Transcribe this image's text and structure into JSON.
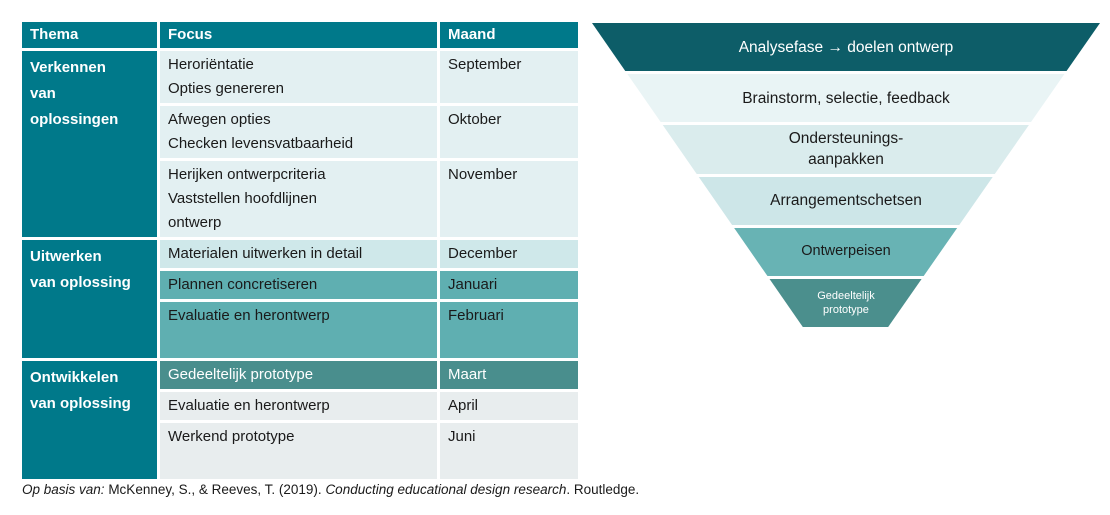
{
  "palette": {
    "teal": "#00798a",
    "row-light": "#e3f0f2",
    "row-medium-light": "#cfe8ea",
    "row-medium": "#5fafb1",
    "row-dark": "#498e8d",
    "row-gray": "#e8edee",
    "text-dark": "#1a1a1a"
  },
  "table": {
    "headers": [
      "Thema",
      "Focus",
      "Maand"
    ],
    "sections": [
      {
        "thema": "Verkennen\nvan\noplossingen",
        "rows": [
          {
            "focus": [
              "Heroriëntatie",
              "Opties genereren"
            ],
            "maand": "September",
            "style": "light"
          },
          {
            "focus": [
              "Afwegen opties",
              "Checken levensvatbaarheid"
            ],
            "maand": "Oktober",
            "style": "light"
          },
          {
            "focus": [
              "Herijken ontwerpcriteria",
              "Vaststellen hoofdlijnen\nontwerp"
            ],
            "maand": "November",
            "style": "light"
          }
        ]
      },
      {
        "thema": "Uitwerken\nvan oplossing",
        "rows": [
          {
            "focus": [
              "Materialen uitwerken in detail"
            ],
            "maand": "December",
            "style": "medium-light"
          },
          {
            "focus": [
              "Plannen concretiseren"
            ],
            "maand": "Januari",
            "style": "medium"
          },
          {
            "focus": [
              "Evaluatie en herontwerp"
            ],
            "maand": "Februari",
            "style": "medium",
            "tall": true
          }
        ]
      },
      {
        "thema": "Ontwikkelen\nvan oplossing",
        "rows": [
          {
            "focus": [
              "Gedeeltelijk prototype"
            ],
            "maand": "Maart",
            "style": "dark"
          },
          {
            "focus": [
              "Evaluatie en herontwerp"
            ],
            "maand": "April",
            "style": "gray"
          },
          {
            "focus": [
              "Werkend prototype"
            ],
            "maand": "Juni",
            "style": "gray",
            "tall": true
          }
        ]
      }
    ]
  },
  "funnel": {
    "levels": [
      {
        "label": "Analysefase → doelen ontwerp",
        "bg": "#0d5d68",
        "text_color": "#ffffff"
      },
      {
        "label": "Brainstorm, selectie, feedback",
        "bg": "#e9f4f5",
        "text_color": "#1a1a1a"
      },
      {
        "label": "Ondersteunings-\naanpakken",
        "bg": "#daeced",
        "text_color": "#1a1a1a"
      },
      {
        "label": "Arrangementschetsen",
        "bg": "#cde6e8",
        "text_color": "#1a1a1a"
      },
      {
        "label": "Ontwerpeisen",
        "bg": "#68b3b4",
        "text_color": "#1a1a1a"
      },
      {
        "label": "Gedeeltelijk\nprototype",
        "bg": "#4b8f8d",
        "text_color": "#ffffff"
      }
    ]
  },
  "citation": {
    "prefix": "Op basis van:",
    "authors": "McKenney, S., & Reeves, T. (2019).",
    "title": "Conducting educational design research",
    "suffix": ". Routledge."
  }
}
